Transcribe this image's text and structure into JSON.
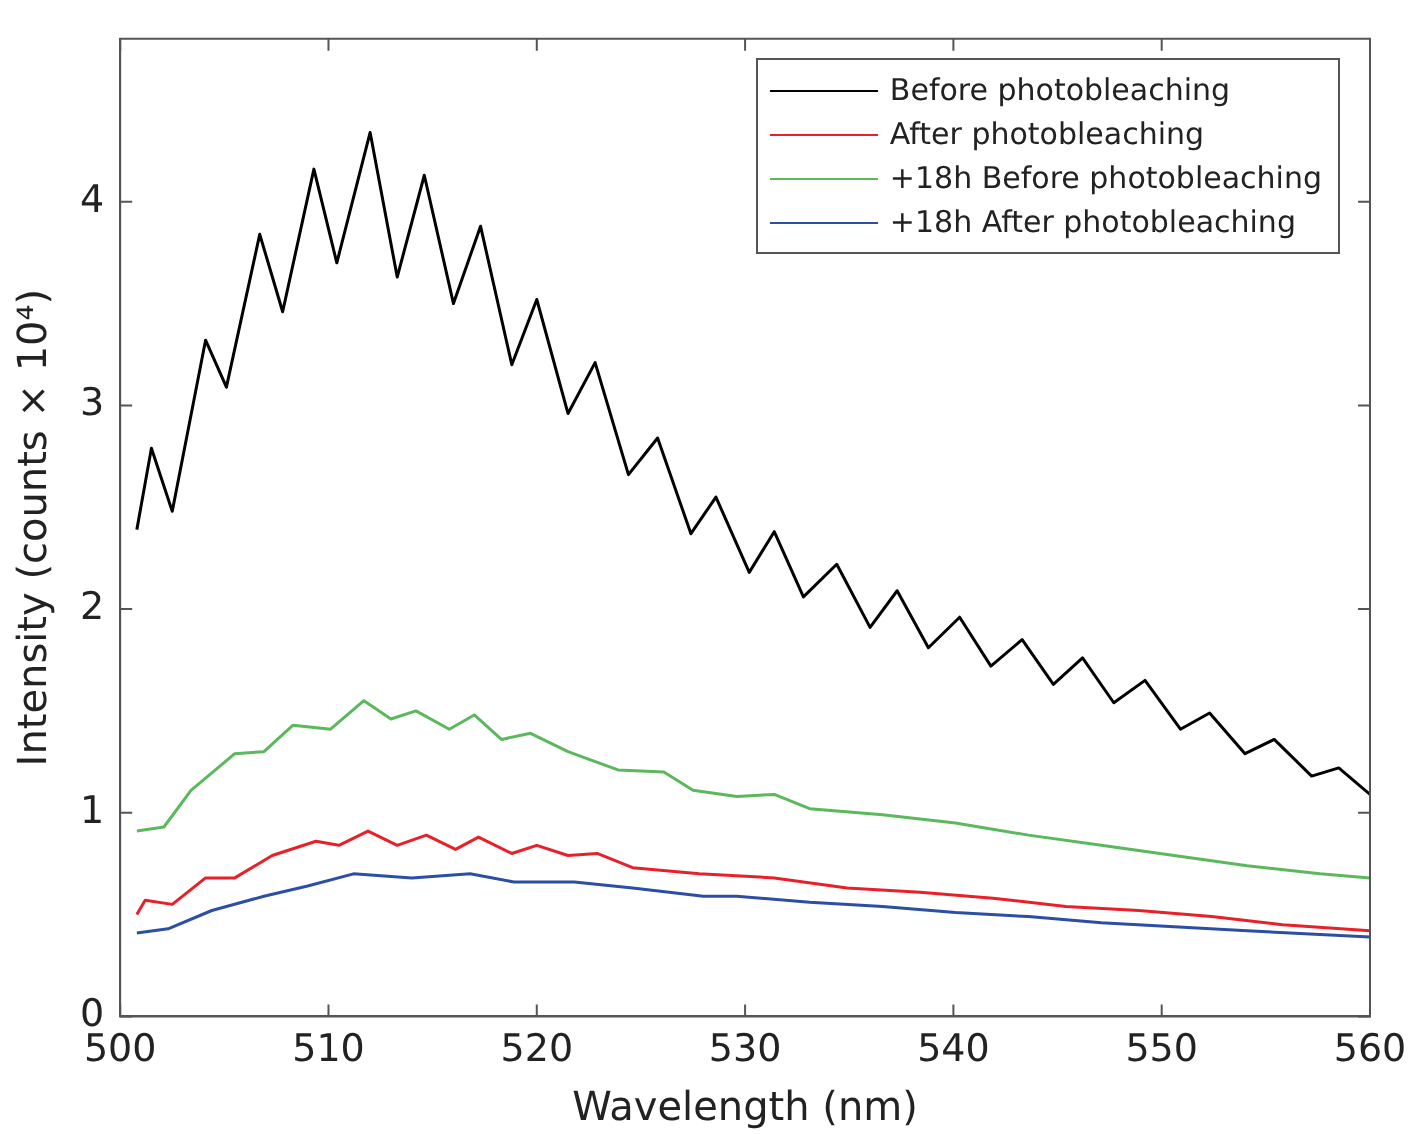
{
  "chart_data": {
    "type": "line",
    "xlabel": "Wavelength (nm)",
    "ylabel": "Intensity (counts × 10⁴)",
    "xlim": [
      500,
      560
    ],
    "xticks": [
      500,
      510,
      520,
      530,
      540,
      550,
      560
    ],
    "ylim": [
      0,
      4.8
    ],
    "yticks": [
      0,
      1,
      2,
      3,
      4
    ],
    "grid": false,
    "legend": "top right",
    "marker": "none",
    "line_style": "solid",
    "series": [
      {
        "name": "Before photobleaching",
        "color": "#000000",
        "x": [
          500.8,
          501.5,
          502.5,
          504.1,
          505.1,
          506.7,
          507.8,
          509.3,
          510.4,
          512.0,
          513.3,
          514.6,
          516.0,
          517.3,
          518.8,
          520.0,
          521.5,
          522.8,
          524.4,
          525.8,
          527.4,
          528.6,
          530.2,
          531.4,
          532.8,
          534.4,
          536.0,
          537.3,
          538.8,
          540.3,
          541.8,
          543.3,
          544.8,
          546.2,
          547.7,
          549.2,
          550.9,
          552.3,
          554.0,
          555.4,
          557.2,
          558.5,
          560.0
        ],
        "values": [
          2.39,
          2.79,
          2.48,
          3.32,
          3.09,
          3.84,
          3.46,
          4.16,
          3.7,
          4.34,
          3.63,
          4.13,
          3.5,
          3.88,
          3.2,
          3.52,
          2.96,
          3.21,
          2.66,
          2.84,
          2.37,
          2.55,
          2.18,
          2.38,
          2.06,
          2.22,
          1.91,
          2.09,
          1.81,
          1.96,
          1.72,
          1.85,
          1.63,
          1.76,
          1.54,
          1.65,
          1.41,
          1.49,
          1.29,
          1.36,
          1.18,
          1.22,
          1.09
        ]
      },
      {
        "name": "After photobleaching",
        "color": "#e8202a",
        "x": [
          500.8,
          501.2,
          502.5,
          504.1,
          505.5,
          507.3,
          509.4,
          510.5,
          511.9,
          513.3,
          514.7,
          516.1,
          517.2,
          518.8,
          520.0,
          521.5,
          522.9,
          524.6,
          527.8,
          531.4,
          534.9,
          538.4,
          541.9,
          545.4,
          548.9,
          552.4,
          555.8,
          560.0
        ],
        "values": [
          0.5,
          0.57,
          0.55,
          0.68,
          0.68,
          0.79,
          0.86,
          0.84,
          0.91,
          0.84,
          0.89,
          0.82,
          0.88,
          0.8,
          0.84,
          0.79,
          0.8,
          0.73,
          0.7,
          0.68,
          0.63,
          0.61,
          0.58,
          0.54,
          0.52,
          0.49,
          0.45,
          0.42
        ]
      },
      {
        "name": "+18h Before photobleaching",
        "color": "#5cb85c",
        "x": [
          500.8,
          502.1,
          503.4,
          505.5,
          506.9,
          508.3,
          510.1,
          511.7,
          513.0,
          514.2,
          515.8,
          517.0,
          518.3,
          519.7,
          521.5,
          523.9,
          526.1,
          527.5,
          529.6,
          531.4,
          533.1,
          536.6,
          540.1,
          543.6,
          547.1,
          550.6,
          554.1,
          557.6,
          560.0
        ],
        "values": [
          0.91,
          0.93,
          1.11,
          1.29,
          1.3,
          1.43,
          1.41,
          1.55,
          1.46,
          1.5,
          1.41,
          1.48,
          1.36,
          1.39,
          1.3,
          1.21,
          1.2,
          1.11,
          1.08,
          1.09,
          1.02,
          0.99,
          0.95,
          0.89,
          0.84,
          0.79,
          0.74,
          0.7,
          0.68
        ]
      },
      {
        "name": "+18h After photobleaching",
        "color": "#2c4fa3",
        "x": [
          500.8,
          502.3,
          504.4,
          506.9,
          509.0,
          511.2,
          514.0,
          516.8,
          518.9,
          521.8,
          524.6,
          528.0,
          529.6,
          533.1,
          536.6,
          540.1,
          543.6,
          547.1,
          550.6,
          554.1,
          560.0
        ],
        "values": [
          0.41,
          0.43,
          0.52,
          0.59,
          0.64,
          0.7,
          0.68,
          0.7,
          0.66,
          0.66,
          0.63,
          0.59,
          0.59,
          0.56,
          0.54,
          0.51,
          0.49,
          0.46,
          0.44,
          0.42,
          0.39
        ]
      }
    ]
  }
}
